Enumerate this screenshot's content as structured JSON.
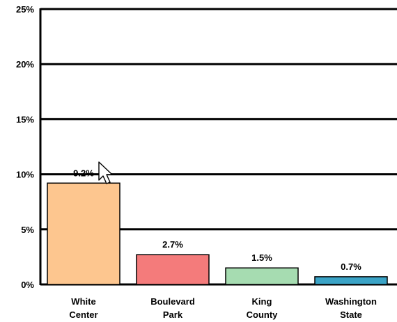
{
  "chart_data": {
    "type": "bar",
    "categories": [
      [
        "White",
        "Center"
      ],
      [
        "Boulevard",
        "Park"
      ],
      [
        "King",
        "County"
      ],
      [
        "Washington",
        "State"
      ]
    ],
    "values": [
      9.2,
      2.7,
      1.5,
      0.7
    ],
    "value_labels": [
      "9.2%",
      "2.7%",
      "1.5%",
      "0.7%"
    ],
    "colors": [
      "#fdc68f",
      "#f47b7b",
      "#a6dcb1",
      "#3aa3c6"
    ],
    "yticks": [
      0,
      5,
      10,
      15,
      20,
      25
    ],
    "ytick_labels": [
      "0%",
      "5%",
      "10%",
      "15%",
      "20%",
      "25%"
    ],
    "ylim": [
      0,
      25
    ],
    "grid": true,
    "title": "",
    "xlabel": "",
    "ylabel": ""
  },
  "overlay": {
    "cursor_icon": "mouse-pointer-icon"
  }
}
